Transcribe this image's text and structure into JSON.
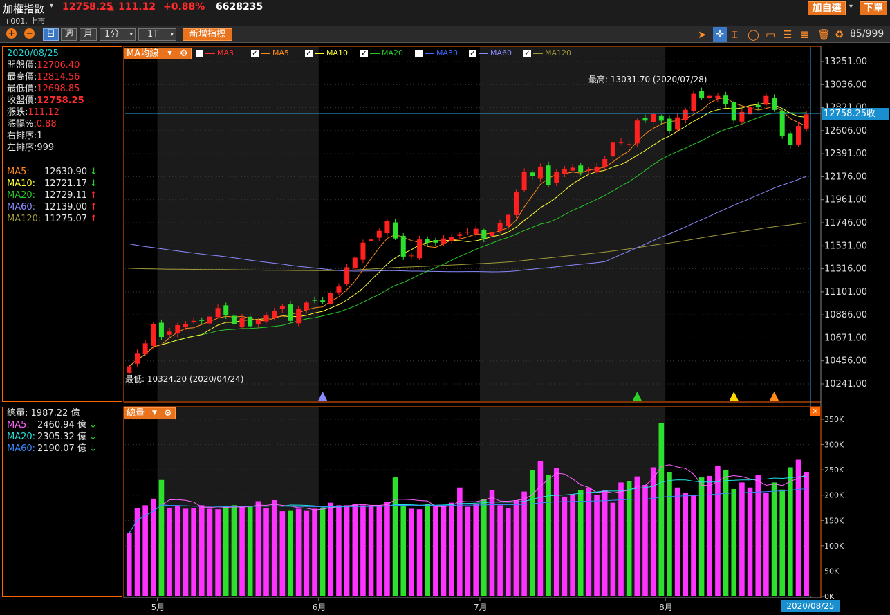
{
  "header": {
    "symbol": "加權指數",
    "price": "12758.25",
    "change": "111.12",
    "change_pct": "+0.88%",
    "volume": "6628235",
    "code": "+001, 上市",
    "add_watch": "加自選",
    "order": "下單"
  },
  "toolbar": {
    "periods": [
      "日",
      "週",
      "月"
    ],
    "minute": "1分",
    "tick": "1T",
    "add_indicator": "新增指標",
    "count": "85/999"
  },
  "info_panel": {
    "date": "2020/08/25",
    "rows": [
      {
        "label": "開盤價:",
        "value": "12706.40"
      },
      {
        "label": "最高價:",
        "value": "12814.56"
      },
      {
        "label": "最低價:",
        "value": "12698.85"
      },
      {
        "label": "收盤價:",
        "value": "12758.25"
      },
      {
        "label": "漲跌:",
        "value": "111.12"
      },
      {
        "label": "漲幅%:",
        "value": "0.88"
      },
      {
        "label": "右排序:",
        "value": "1"
      },
      {
        "label": "左排序:",
        "value": "999"
      }
    ],
    "ma_rows": [
      {
        "label": "MA5:",
        "value": "12630.90",
        "arrow": "↓",
        "color": "#ff8c1a"
      },
      {
        "label": "MA10:",
        "value": "12721.17",
        "arrow": "↓",
        "color": "#ffff33"
      },
      {
        "label": "MA20:",
        "value": "12729.11",
        "arrow": "↑",
        "color": "#27c927"
      },
      {
        "label": "MA60:",
        "value": "12139.00",
        "arrow": "↑",
        "color": "#8a8aff"
      },
      {
        "label": "MA120:",
        "value": "11275.07",
        "arrow": "↑",
        "color": "#a09a3a"
      }
    ]
  },
  "volume_info": {
    "total_label": "總量:",
    "total_value": "1987.22 億",
    "ma_rows": [
      {
        "label": "MA5:",
        "value": "2460.94 億",
        "arrow": "↓",
        "color": "#ff66ff"
      },
      {
        "label": "MA20:",
        "value": "2305.32 億",
        "arrow": "↓",
        "color": "#22e0e0"
      },
      {
        "label": "MA60:",
        "value": "2190.07 億",
        "arrow": "↓",
        "color": "#3a8aff"
      }
    ]
  },
  "chart_data": [
    {
      "type": "candlestick",
      "indicator_label": "MA均線",
      "legend": [
        {
          "name": "MA3",
          "checked": false,
          "color": "#ff3030"
        },
        {
          "name": "MA5",
          "checked": true,
          "color": "#ff8c1a"
        },
        {
          "name": "MA10",
          "checked": true,
          "color": "#ffff33"
        },
        {
          "name": "MA20",
          "checked": true,
          "color": "#27c927"
        },
        {
          "name": "MA30",
          "checked": false,
          "color": "#3a6aff"
        },
        {
          "name": "MA60",
          "checked": true,
          "color": "#8a8aff"
        },
        {
          "name": "MA120",
          "checked": true,
          "color": "#a09a3a"
        }
      ],
      "y_ticks": [
        "13251.00",
        "13036.00",
        "12821.00",
        "12606.00",
        "12391.00",
        "12176.00",
        "11961.00",
        "11746.00",
        "11531.00",
        "11316.00",
        "11101.00",
        "10886.00",
        "10671.00",
        "10456.00",
        "10241.00"
      ],
      "ylim": [
        10241,
        13251
      ],
      "x_month_labels": [
        {
          "label": "5月",
          "index": 4
        },
        {
          "label": "6月",
          "index": 24
        },
        {
          "label": "7月",
          "index": 44
        },
        {
          "label": "8月",
          "index": 67
        }
      ],
      "current_price_label": "12758.25收",
      "high_note": "最高: 13031.70 (2020/07/28)",
      "low_note": "最低: 10324.20 (2020/04/24)",
      "last_date": "2020/08/25",
      "closes": [
        10405,
        10530,
        10620,
        10800,
        10680,
        10730,
        10790,
        10800,
        10830,
        10830,
        10870,
        10950,
        10880,
        10800,
        10860,
        10780,
        10840,
        10880,
        10920,
        10970,
        10830,
        10940,
        11000,
        11020,
        11010,
        11090,
        11150,
        11330,
        11420,
        11560,
        11590,
        11670,
        11760,
        11600,
        11430,
        11440,
        11590,
        11560,
        11560,
        11600,
        11610,
        11640,
        11660,
        11690,
        11600,
        11660,
        11740,
        11820,
        12030,
        12220,
        12180,
        12270,
        12100,
        12220,
        12250,
        12260,
        12220,
        12240,
        12270,
        12340,
        12500,
        12500,
        12480,
        12700,
        12700,
        12760,
        12700,
        12600,
        12730,
        12800,
        12950,
        12910,
        12930,
        12930,
        12850,
        12700,
        12780,
        12830,
        12830,
        12930,
        12800,
        12560,
        12470,
        12650,
        12758
      ],
      "high_value": 13031.7,
      "low_value": 10324.2
    },
    {
      "type": "bar",
      "indicator_label": "總量",
      "y_ticks": [
        "350K",
        "300K",
        "250K",
        "200K",
        "150K",
        "100K",
        "50K",
        "0K"
      ],
      "ylim": [
        0,
        360
      ],
      "values": [
        125,
        175,
        180,
        193,
        230,
        175,
        178,
        173,
        175,
        180,
        173,
        172,
        178,
        180,
        178,
        178,
        188,
        175,
        190,
        168,
        170,
        173,
        170,
        173,
        175,
        185,
        180,
        180,
        182,
        180,
        177,
        180,
        187,
        235,
        180,
        173,
        172,
        183,
        180,
        177,
        185,
        215,
        177,
        182,
        192,
        210,
        180,
        175,
        190,
        207,
        250,
        268,
        240,
        253,
        197,
        202,
        210,
        215,
        200,
        210,
        185,
        225,
        228,
        237,
        220,
        255,
        343,
        245,
        215,
        205,
        200,
        235,
        238,
        258,
        250,
        212,
        225,
        215,
        240,
        205,
        225,
        211,
        255,
        270,
        245
      ],
      "ma_lines": [
        "MA5",
        "MA20",
        "MA60"
      ]
    }
  ]
}
